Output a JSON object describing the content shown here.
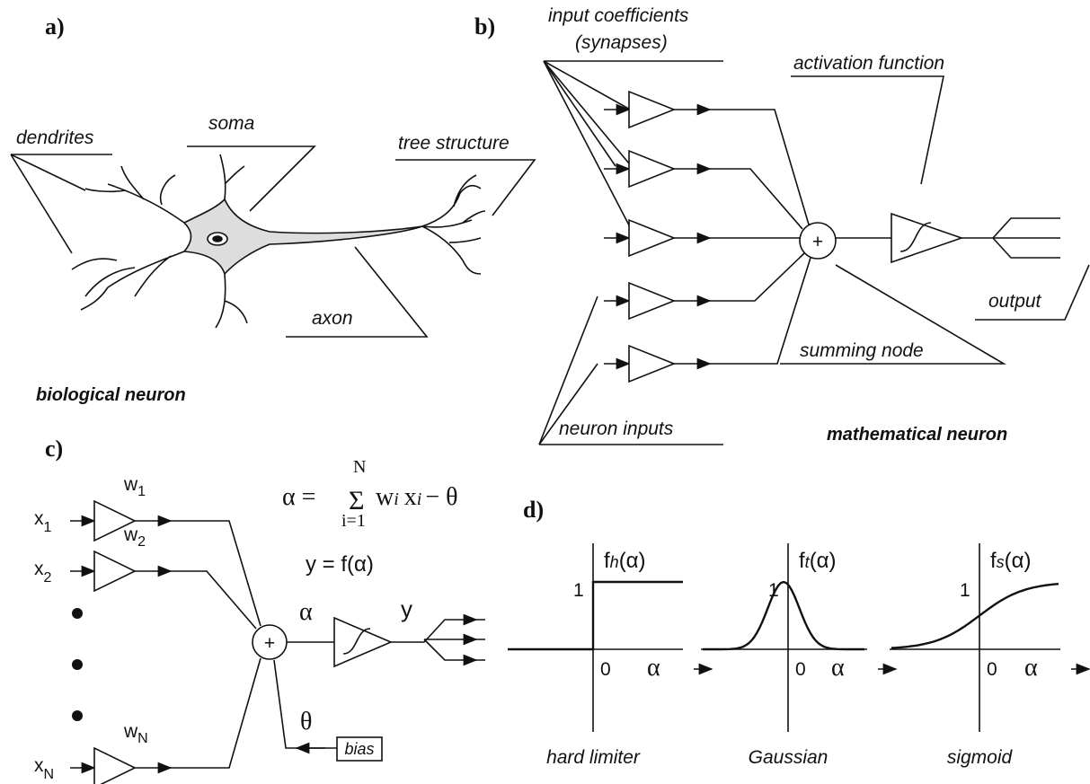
{
  "panel_a": {
    "label": "a)",
    "dendrites": "dendrites",
    "soma": "soma",
    "tree_structure": "tree structure",
    "axon": "axon",
    "caption": "biological neuron"
  },
  "panel_b": {
    "label": "b)",
    "synapses_line1": "input coefficients",
    "synapses_line2": "(synapses)",
    "activation": "activation function",
    "output": "output",
    "summing_node": "summing node",
    "inputs": "neuron inputs",
    "caption": "mathematical neuron",
    "sum_symbol": "+"
  },
  "panel_c": {
    "label": "c)",
    "inputs": [
      {
        "name": "x",
        "index": "1",
        "weight": "w",
        "weight_index": "1"
      },
      {
        "name": "x",
        "index": "2",
        "weight": "w",
        "weight_index": "2"
      },
      {
        "name": "x",
        "index": "N",
        "weight": "w",
        "weight_index": "N"
      }
    ],
    "formula": {
      "lhs": "α =",
      "sigma": "Σ",
      "upper": "N",
      "lower": "i=1",
      "w": "w",
      "wi": "i",
      "x": "x",
      "xi": "i",
      "rest": "− θ"
    },
    "output_eq": "y = f(α)",
    "alpha": "α",
    "y": "y",
    "theta": "θ",
    "bias": "bias",
    "sum_symbol": "+"
  },
  "panel_d": {
    "label": "d)",
    "functions": [
      {
        "f": "f",
        "sub": "h",
        "arg": "(α)",
        "one": "1",
        "zero": "0",
        "axis": "α",
        "caption": "hard limiter"
      },
      {
        "f": "f",
        "sub": "t",
        "arg": "(α)",
        "one": "1",
        "zero": "0",
        "axis": "α",
        "caption": "Gaussian"
      },
      {
        "f": "f",
        "sub": "s",
        "arg": "(α)",
        "one": "1",
        "zero": "0",
        "axis": "α",
        "caption": "sigmoid"
      }
    ]
  }
}
